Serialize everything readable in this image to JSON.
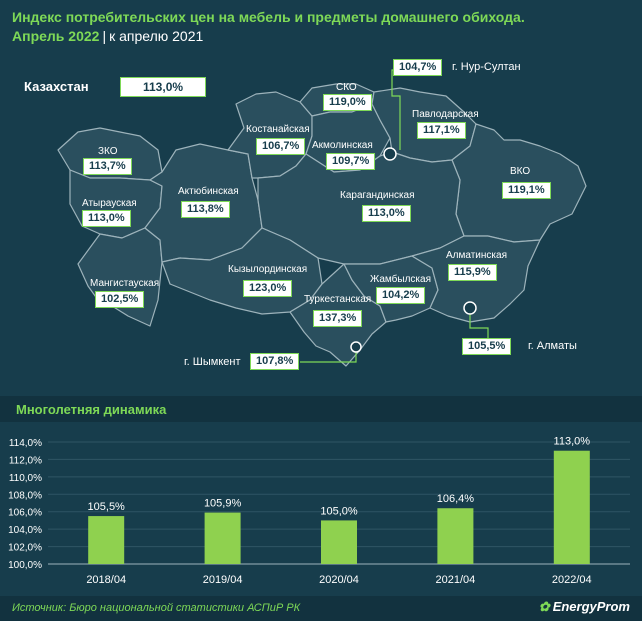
{
  "header": {
    "title": "Индекс потребительских цен на мебель и предметы домашнего обихода.",
    "period": "Апрель 2022",
    "comparison": "к апрелю 2021"
  },
  "map": {
    "country": {
      "label": "Казахстан",
      "value": "113,0%"
    },
    "regions": [
      {
        "name": "СКО",
        "value": "119,0%"
      },
      {
        "name": "Павлодарская",
        "value": "117,1%"
      },
      {
        "name": "Костанайская",
        "value": "106,7%"
      },
      {
        "name": "Акмолинская",
        "value": "109,7%"
      },
      {
        "name": "ЗКО",
        "value": "113,7%"
      },
      {
        "name": "Атырауская",
        "value": "113,0%"
      },
      {
        "name": "Актюбинская",
        "value": "113,8%"
      },
      {
        "name": "Карагандинская",
        "value": "113,0%"
      },
      {
        "name": "ВКО",
        "value": "119,1%"
      },
      {
        "name": "Мангистауская",
        "value": "102,5%"
      },
      {
        "name": "Кызылординская",
        "value": "123,0%"
      },
      {
        "name": "Жамбылская",
        "value": "104,2%"
      },
      {
        "name": "Алматинская",
        "value": "115,9%"
      },
      {
        "name": "Туркестанская",
        "value": "137,3%"
      }
    ],
    "cities": [
      {
        "name": "г. Нур-Султан",
        "value": "104,7%"
      },
      {
        "name": "г. Шымкент",
        "value": "107,8%"
      },
      {
        "name": "г. Алматы",
        "value": "105,5%"
      }
    ]
  },
  "section_title": "Многолетняя динамика",
  "chart_data": {
    "type": "bar",
    "categories": [
      "2018/04",
      "2019/04",
      "2020/04",
      "2021/04",
      "2022/04"
    ],
    "values": [
      105.5,
      105.9,
      105.0,
      106.4,
      113.0
    ],
    "value_labels": [
      "105,5%",
      "105,9%",
      "105,0%",
      "106,4%",
      "113,0%"
    ],
    "y_ticks": [
      "100,0%",
      "102,0%",
      "104,0%",
      "106,0%",
      "108,0%",
      "110,0%",
      "112,0%",
      "114,0%"
    ],
    "ylim": [
      100,
      114
    ],
    "bar_color": "#8fd14f",
    "grid": true
  },
  "footer": {
    "source": "Источник: Бюро национальной статистики АСПиР РК",
    "brand": "EnergyProm"
  },
  "colors": {
    "background": "#173d4c",
    "map_fill": "#2a4f5e",
    "map_border": "#9db3bb",
    "accent": "#7ed957"
  }
}
